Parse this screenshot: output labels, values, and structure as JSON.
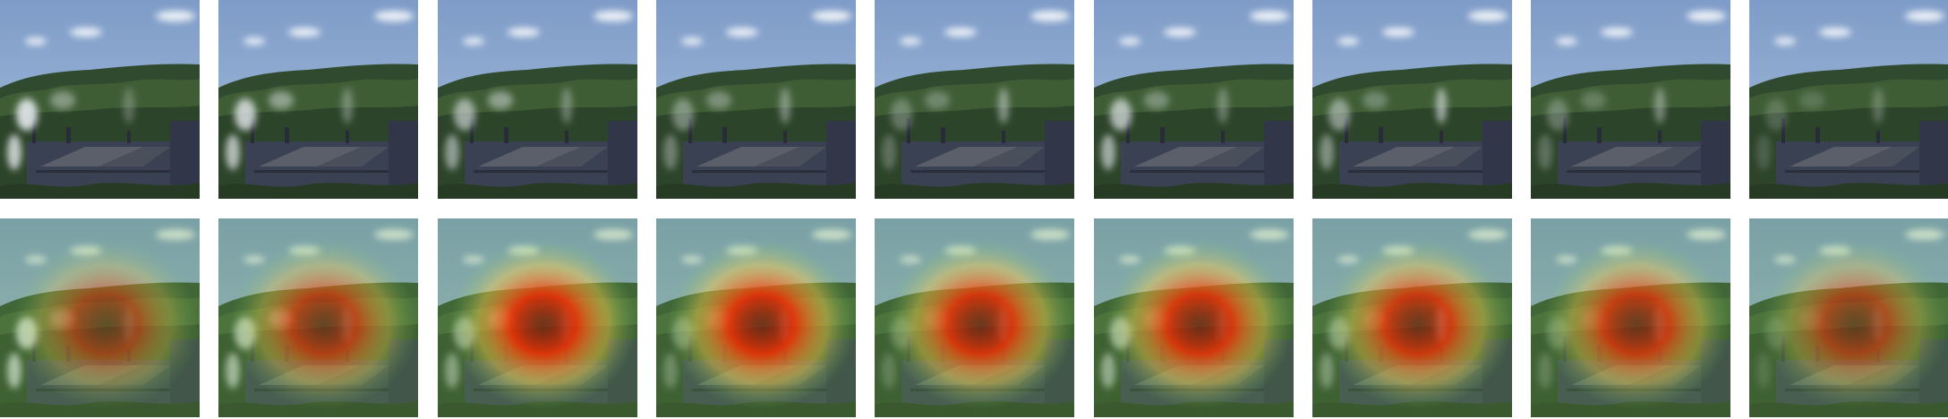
{
  "figure": {
    "rows": [
      {
        "name": "original-frames",
        "overlay": false,
        "frames": [
          {
            "smoke": [
              0.9,
              0.7,
              0.4
            ]
          },
          {
            "smoke": [
              0.8,
              0.8,
              0.5
            ]
          },
          {
            "smoke": [
              0.6,
              0.8,
              0.5
            ]
          },
          {
            "smoke": [
              0.4,
              0.6,
              0.6
            ]
          },
          {
            "smoke": [
              0.3,
              0.5,
              0.7
            ]
          },
          {
            "smoke": [
              0.7,
              0.6,
              0.5
            ]
          },
          {
            "smoke": [
              0.5,
              0.5,
              0.9
            ]
          },
          {
            "smoke": [
              0.3,
              0.4,
              0.6
            ]
          },
          {
            "smoke": [
              0.2,
              0.3,
              0.4
            ]
          }
        ]
      },
      {
        "name": "heatmap-frames",
        "overlay": true,
        "frames": [
          {
            "smoke": [
              0.9,
              0.7,
              0.4
            ],
            "intensity": 0.55
          },
          {
            "smoke": [
              0.8,
              0.8,
              0.5
            ],
            "intensity": 0.7
          },
          {
            "smoke": [
              0.6,
              0.8,
              0.5
            ],
            "intensity": 0.95
          },
          {
            "smoke": [
              0.4,
              0.6,
              0.6
            ],
            "intensity": 0.95
          },
          {
            "smoke": [
              0.3,
              0.5,
              0.7
            ],
            "intensity": 0.9
          },
          {
            "smoke": [
              0.7,
              0.6,
              0.5
            ],
            "intensity": 0.9
          },
          {
            "smoke": [
              0.5,
              0.5,
              0.9
            ],
            "intensity": 0.85
          },
          {
            "smoke": [
              0.3,
              0.4,
              0.6
            ],
            "intensity": 0.8
          },
          {
            "smoke": [
              0.2,
              0.3,
              0.4
            ],
            "intensity": 0.6
          }
        ]
      }
    ],
    "colors": {
      "sky_top": "#7e9cc8",
      "sky_bottom": "#a9bfdb",
      "hill": "#2f4a2f",
      "trees": "#3e5d35",
      "building": "#3a4152",
      "roof": "#5a5f6a",
      "smoke": "#e6eaee",
      "heat_core": "#8a0000",
      "heat_mid": "#ff2a00",
      "heat_edge": "#ffd24a"
    }
  }
}
